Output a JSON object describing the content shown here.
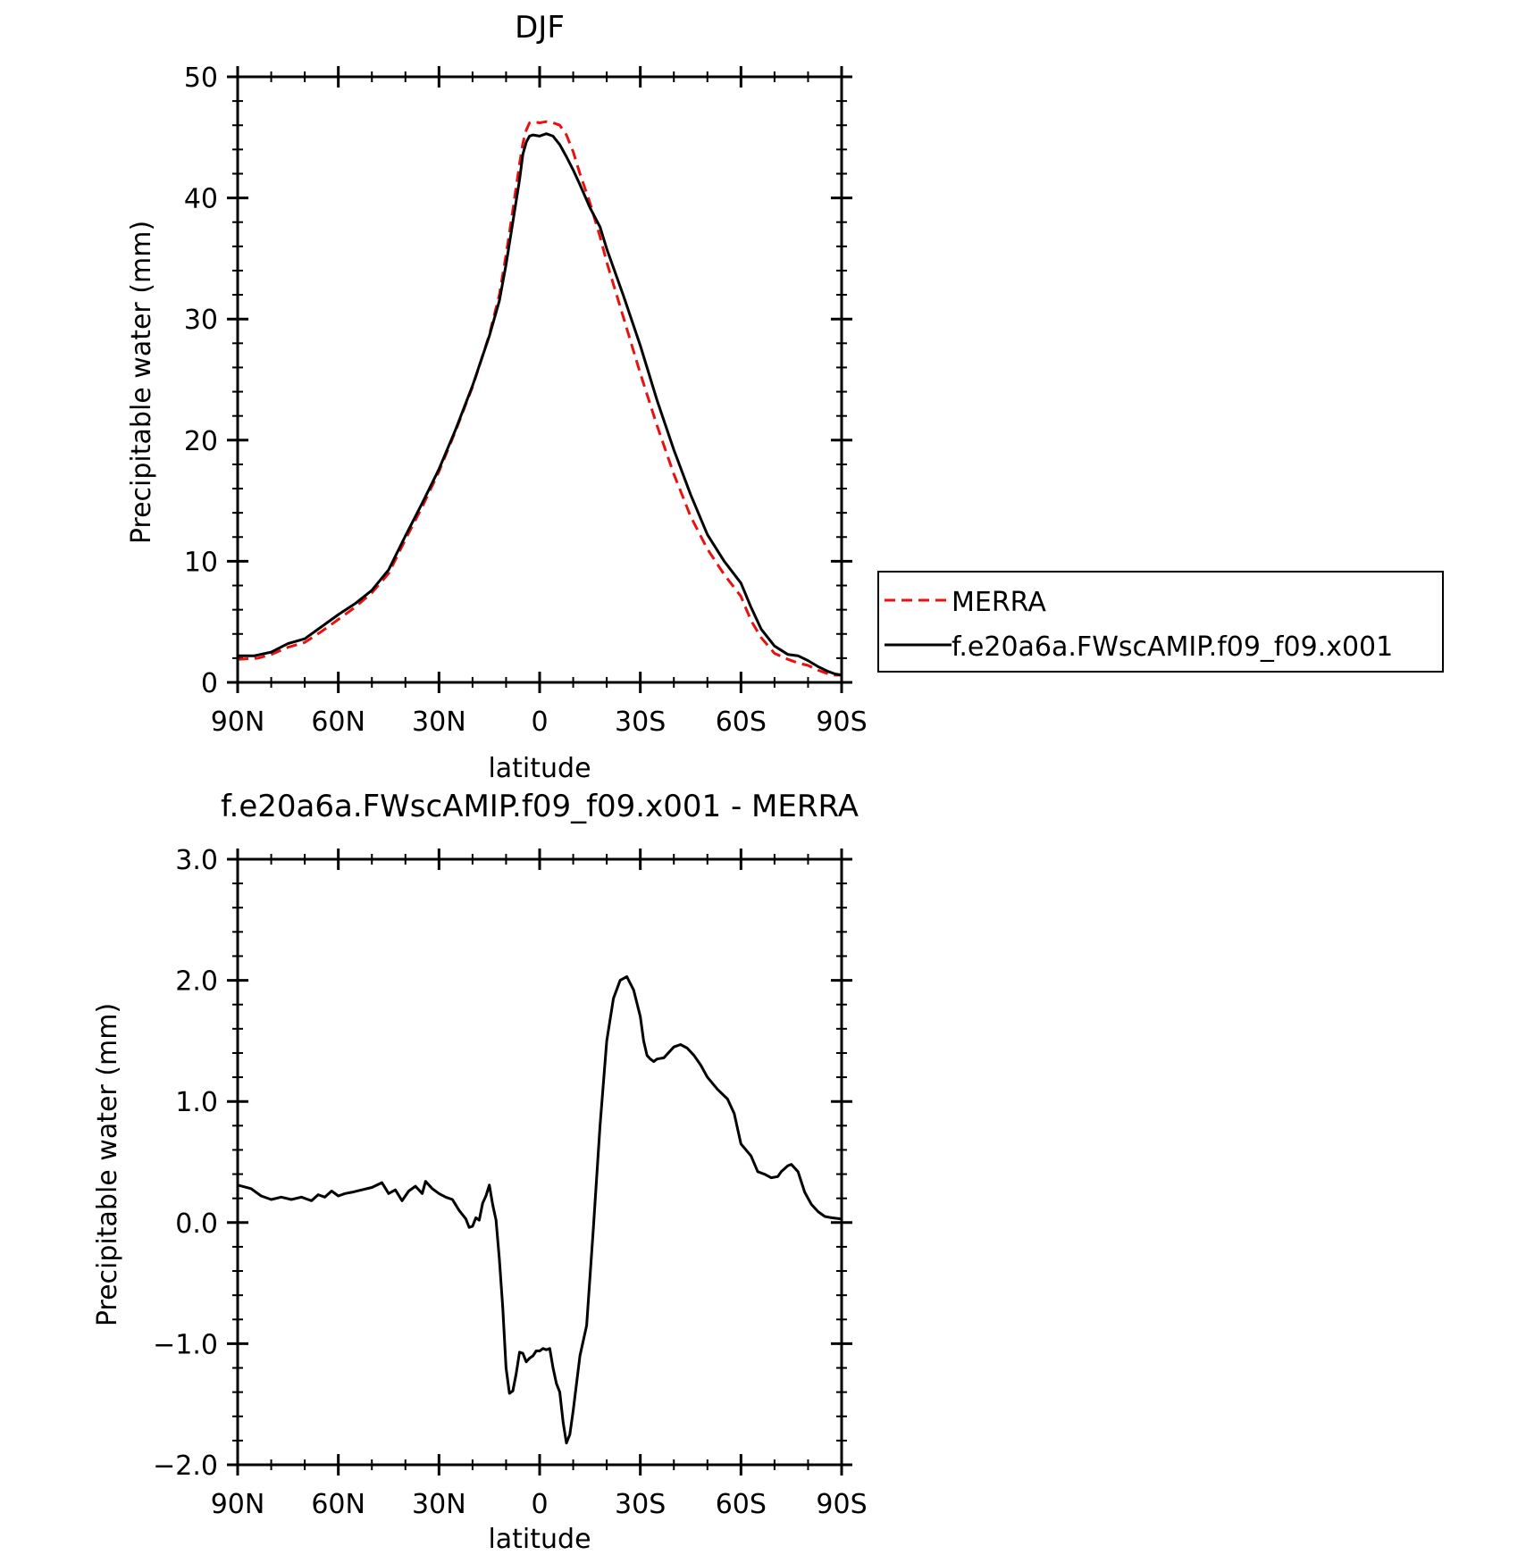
{
  "chart_data": [
    {
      "type": "line",
      "title": "DJF",
      "xlabel": "latitude",
      "ylabel": "Precipitable water (mm)",
      "xlim": [
        90,
        -90
      ],
      "ylim": [
        0,
        50
      ],
      "x_ticks": [
        90,
        60,
        30,
        0,
        -30,
        -60,
        -90
      ],
      "x_tick_labels": [
        "90N",
        "60N",
        "30N",
        "0",
        "30S",
        "60S",
        "90S"
      ],
      "y_ticks": [
        0,
        10,
        20,
        30,
        40,
        50
      ],
      "y_tick_labels": [
        "0",
        "10",
        "20",
        "30",
        "40",
        "50"
      ],
      "legend": {
        "position": "right",
        "entries": [
          "MERRA",
          "f.e20a6a.FWscAMIP.f09_f09.x001"
        ]
      },
      "series": [
        {
          "name": "MERRA",
          "color": "#e8110f",
          "dash": "dashed",
          "x": [
            90,
            84,
            80,
            75,
            70,
            65,
            60,
            55,
            50,
            45,
            40,
            35,
            30,
            25,
            20,
            15,
            12,
            10,
            8,
            6,
            5,
            4,
            3,
            2,
            0,
            -2,
            -4,
            -6,
            -8,
            -10,
            -12,
            -15,
            -18,
            -20,
            -25,
            -30,
            -35,
            -40,
            -45,
            -50,
            -55,
            -60,
            -63,
            -66,
            -70,
            -74,
            -77,
            -80,
            -83,
            -86,
            -88,
            -90
          ],
          "y": [
            1.9,
            2.0,
            2.3,
            2.9,
            3.3,
            4.2,
            5.2,
            6.2,
            7.4,
            9.0,
            11.8,
            14.5,
            17.4,
            20.8,
            24.4,
            28.7,
            32.0,
            35.3,
            39.0,
            42.8,
            44.5,
            45.6,
            46.2,
            46.3,
            46.2,
            46.3,
            46.2,
            46.0,
            45.2,
            43.8,
            42.0,
            39.6,
            36.8,
            34.7,
            30.1,
            25.5,
            21.2,
            17.2,
            13.7,
            11.0,
            8.9,
            7.1,
            5.1,
            3.7,
            2.4,
            1.9,
            1.6,
            1.4,
            1.0,
            0.7,
            0.6,
            0.6
          ]
        },
        {
          "name": "f.e20a6a.FWscAMIP.f09_f09.x001",
          "color": "#000000",
          "dash": "solid",
          "x": [
            90,
            85,
            80,
            75,
            70,
            65,
            60,
            55,
            50,
            45,
            40,
            35,
            30,
            25,
            20,
            15,
            12,
            10,
            8,
            6,
            5,
            4,
            3,
            2,
            0,
            -2,
            -4,
            -6,
            -8,
            -10,
            -12,
            -15,
            -18,
            -20,
            -25,
            -30,
            -35,
            -40,
            -45,
            -50,
            -55,
            -60,
            -63,
            -66,
            -70,
            -74,
            -77,
            -80,
            -83,
            -86,
            -88,
            -90
          ],
          "y": [
            2.2,
            2.2,
            2.5,
            3.2,
            3.6,
            4.6,
            5.6,
            6.5,
            7.6,
            9.3,
            12.1,
            14.8,
            17.6,
            20.9,
            24.5,
            28.6,
            31.5,
            34.5,
            38.0,
            41.5,
            43.6,
            44.6,
            45.1,
            45.2,
            45.1,
            45.3,
            45.1,
            44.4,
            43.4,
            42.3,
            41.1,
            39.2,
            37.6,
            35.8,
            31.9,
            27.8,
            23.3,
            19.2,
            15.5,
            12.2,
            10.0,
            8.2,
            6.2,
            4.4,
            3.0,
            2.3,
            2.2,
            1.8,
            1.3,
            0.9,
            0.7,
            0.6
          ]
        }
      ]
    },
    {
      "type": "line",
      "title": "f.e20a6a.FWscAMIP.f09_f09.x001 - MERRA",
      "xlabel": "latitude",
      "ylabel": "Precipitable water (mm)",
      "xlim": [
        90,
        -90
      ],
      "ylim": [
        -2.0,
        3.0
      ],
      "x_ticks": [
        90,
        60,
        30,
        0,
        -30,
        -60,
        -90
      ],
      "x_tick_labels": [
        "90N",
        "60N",
        "30N",
        "0",
        "30S",
        "60S",
        "90S"
      ],
      "y_ticks": [
        -2.0,
        -1.0,
        0.0,
        1.0,
        2.0,
        3.0
      ],
      "y_tick_labels": [
        "-2.0",
        "-1.0",
        "0.0",
        "1.0",
        "2.0",
        "3.0"
      ],
      "series": [
        {
          "name": "f.e20a6a.FWscAMIP.f09_f09.x001 - MERRA",
          "color": "#000000",
          "dash": "solid",
          "x": [
            90,
            86,
            83,
            80,
            77,
            74,
            71,
            68,
            66,
            64,
            62,
            60,
            58,
            56,
            53,
            50,
            47,
            45,
            43,
            41,
            39,
            37,
            35,
            34,
            32,
            30,
            28,
            26,
            24,
            22,
            21,
            20,
            19,
            18,
            17,
            16,
            15,
            14,
            13,
            12,
            11,
            10,
            9,
            8,
            7,
            6,
            5,
            4,
            3,
            2,
            1,
            0,
            -1,
            -2,
            -3,
            -4,
            -5,
            -6,
            -7,
            -8,
            -9,
            -10,
            -12,
            -14,
            -16,
            -18,
            -20,
            -22,
            -24,
            -26,
            -28,
            -30,
            -31,
            -32,
            -33,
            -34,
            -35,
            -37,
            -40,
            -42,
            -44,
            -46,
            -48,
            -50,
            -53,
            -56,
            -58,
            -60,
            -63,
            -65,
            -67,
            -69,
            -71,
            -72,
            -74,
            -75,
            -77,
            -79,
            -81,
            -83,
            -85,
            -87,
            -90
          ],
          "y": [
            0.31,
            0.28,
            0.22,
            0.19,
            0.21,
            0.19,
            0.21,
            0.18,
            0.23,
            0.21,
            0.26,
            0.22,
            0.24,
            0.25,
            0.27,
            0.29,
            0.33,
            0.24,
            0.27,
            0.18,
            0.26,
            0.3,
            0.24,
            0.34,
            0.28,
            0.24,
            0.21,
            0.19,
            0.1,
            0.03,
            -0.04,
            -0.03,
            0.04,
            0.02,
            0.16,
            0.22,
            0.31,
            0.15,
            0.02,
            -0.3,
            -0.7,
            -1.2,
            -1.41,
            -1.39,
            -1.25,
            -1.07,
            -1.08,
            -1.15,
            -1.12,
            -1.1,
            -1.06,
            -1.06,
            -1.04,
            -1.05,
            -1.04,
            -1.2,
            -1.33,
            -1.4,
            -1.65,
            -1.82,
            -1.75,
            -1.55,
            -1.1,
            -0.85,
            -0.05,
            0.8,
            1.5,
            1.85,
            2.0,
            2.03,
            1.92,
            1.7,
            1.5,
            1.38,
            1.35,
            1.33,
            1.35,
            1.36,
            1.45,
            1.47,
            1.44,
            1.38,
            1.3,
            1.2,
            1.1,
            1.02,
            0.9,
            0.65,
            0.55,
            0.42,
            0.4,
            0.37,
            0.38,
            0.42,
            0.47,
            0.48,
            0.42,
            0.25,
            0.15,
            0.09,
            0.05,
            0.04,
            0.03
          ]
        }
      ]
    }
  ]
}
